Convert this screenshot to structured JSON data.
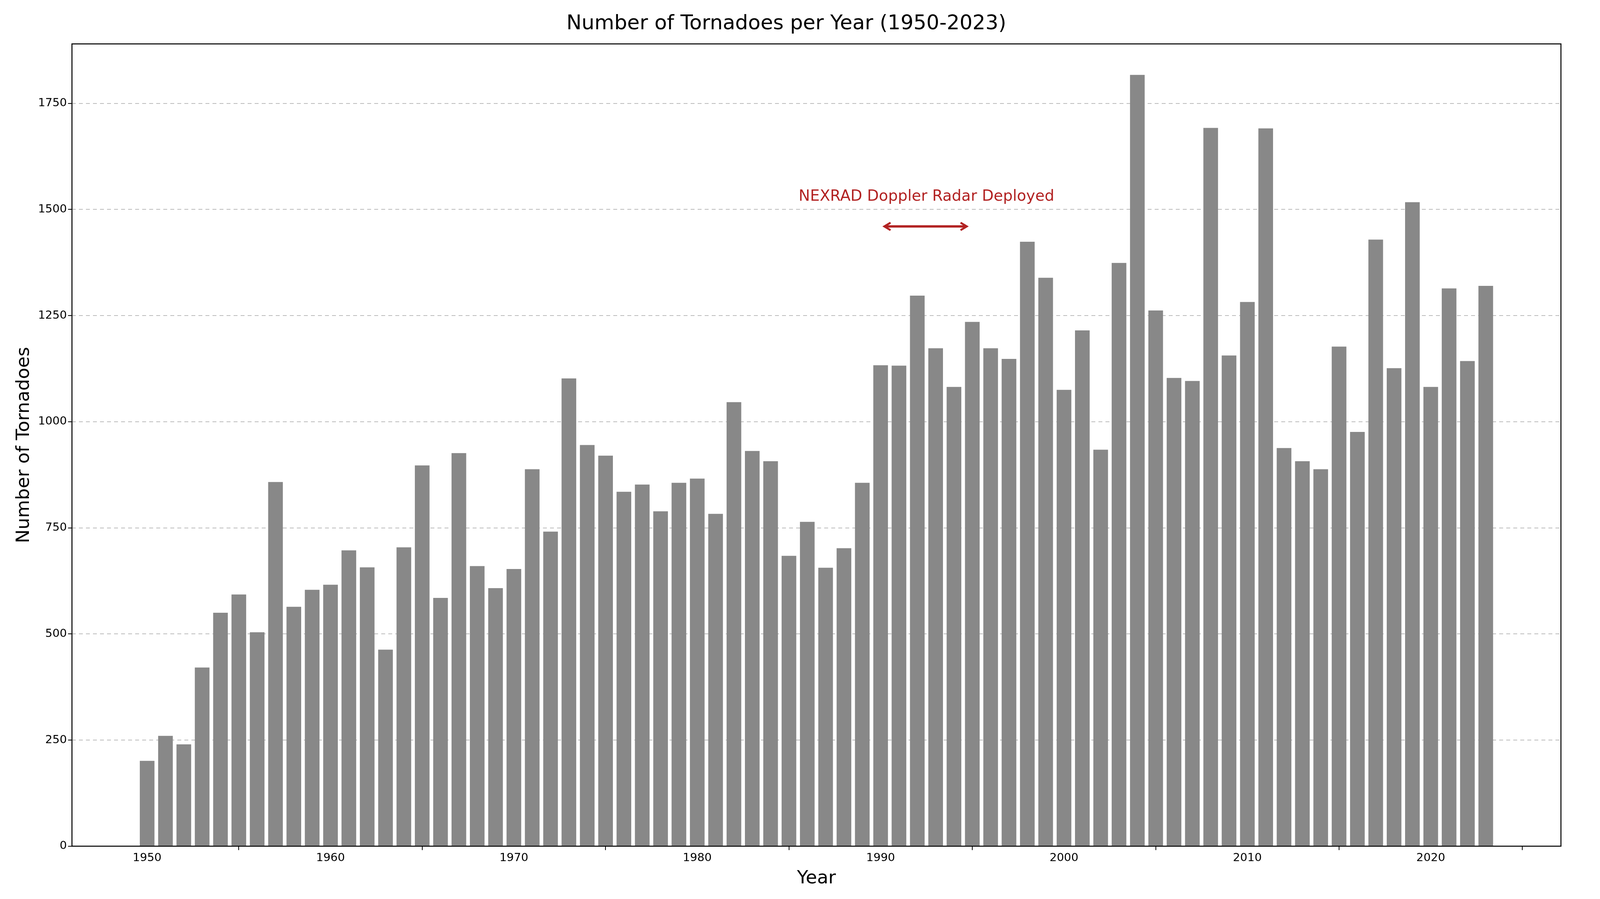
{
  "chart_data": {
    "type": "bar",
    "title": "Number of Tornadoes per Year (1950-2023)",
    "xlabel": "Year",
    "ylabel": "Number of Tornadoes",
    "x": [
      1950,
      1951,
      1952,
      1953,
      1954,
      1955,
      1956,
      1957,
      1958,
      1959,
      1960,
      1961,
      1962,
      1963,
      1964,
      1965,
      1966,
      1967,
      1968,
      1969,
      1970,
      1971,
      1972,
      1973,
      1974,
      1975,
      1976,
      1977,
      1978,
      1979,
      1980,
      1981,
      1982,
      1983,
      1984,
      1985,
      1986,
      1987,
      1988,
      1989,
      1990,
      1991,
      1992,
      1993,
      1994,
      1995,
      1996,
      1997,
      1998,
      1999,
      2000,
      2001,
      2002,
      2003,
      2004,
      2005,
      2006,
      2007,
      2008,
      2009,
      2010,
      2011,
      2012,
      2013,
      2014,
      2015,
      2016,
      2017,
      2018,
      2019,
      2020,
      2021,
      2022,
      2023
    ],
    "values": [
      201,
      260,
      240,
      421,
      550,
      593,
      504,
      858,
      564,
      604,
      616,
      697,
      657,
      463,
      704,
      897,
      585,
      926,
      660,
      608,
      653,
      888,
      741,
      1102,
      945,
      920,
      835,
      852,
      789,
      856,
      866,
      783,
      1046,
      931,
      907,
      684,
      764,
      656,
      702,
      856,
      1133,
      1132,
      1297,
      1173,
      1082,
      1235,
      1173,
      1148,
      1424,
      1339,
      1075,
      1215,
      934,
      1374,
      1817,
      1262,
      1103,
      1096,
      1692,
      1156,
      1282,
      1691,
      938,
      907,
      888,
      1177,
      976,
      1429,
      1126,
      1517,
      1082,
      1314,
      1143,
      1320
    ],
    "color": "#888888",
    "xlim": [
      1945.9,
      2027.1
    ],
    "xticks": [
      1950,
      1960,
      1970,
      1980,
      1990,
      2000,
      2010,
      2020
    ],
    "ylim": [
      0,
      1890
    ],
    "yticks": [
      0,
      250,
      500,
      750,
      1000,
      1250,
      1500,
      1750
    ],
    "grid": true,
    "annotations": [
      {
        "text": "NEXRAD Doppler Radar Deployed",
        "x": 1992.5,
        "y": 1530,
        "color": "#b22222",
        "arrow_x": [
          1990.2,
          1994.7
        ],
        "arrow_y": 1460
      }
    ]
  }
}
